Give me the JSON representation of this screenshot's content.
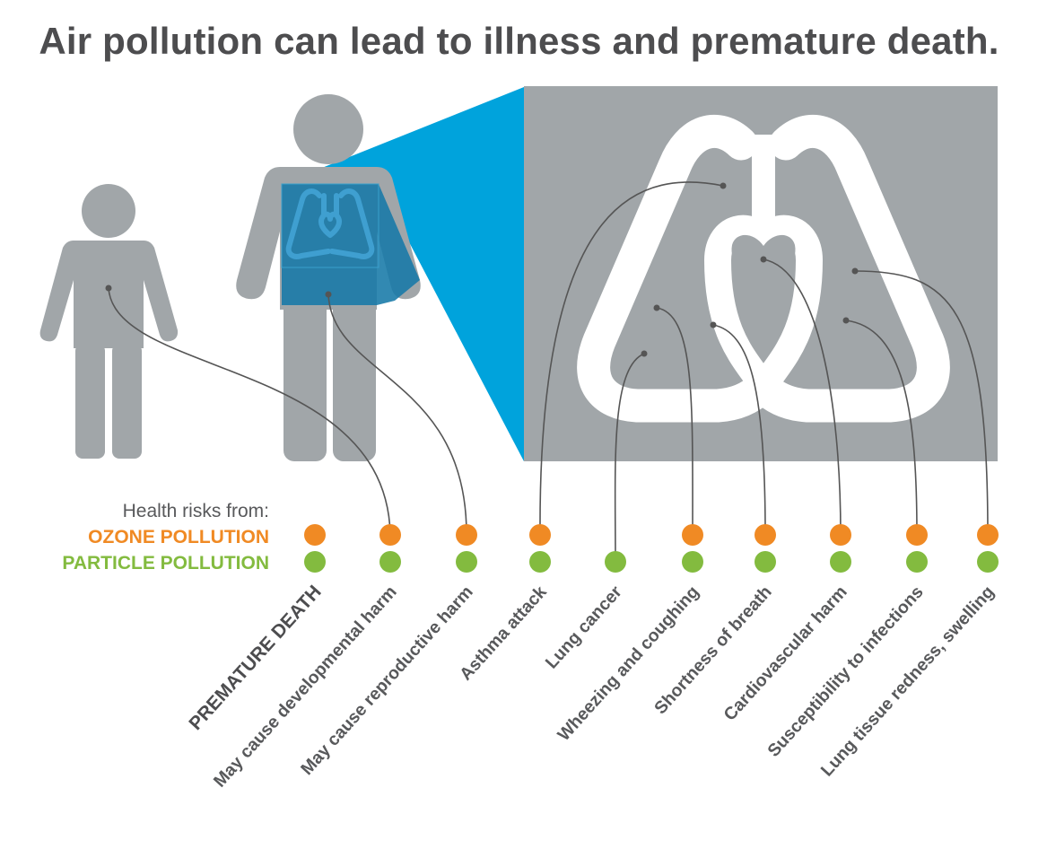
{
  "title": "Air pollution can lead to illness and premature death.",
  "legend": {
    "heading": "Health risks from:",
    "ozone_label": "OZONE POLLUTION",
    "particle_label": "PARTICLE POLLUTION"
  },
  "colors": {
    "ozone": "#f08a24",
    "particle": "#83bb3f",
    "figure_gray": "#a1a6a9",
    "zoom_blue": "#00a3dc",
    "chest_blue": "#1679a7",
    "lungs_white": "#ffffff",
    "text_gray": "#58595b",
    "connector": "#555555"
  },
  "icons": [
    "child-figure-icon",
    "adult-figure-icon",
    "lungs-icon",
    "heart-icon"
  ],
  "risks": [
    {
      "label": "PREMATURE DEATH",
      "ozone": true,
      "particle": true
    },
    {
      "label": "May cause developmental harm",
      "ozone": true,
      "particle": true
    },
    {
      "label": "May cause reproductive harm",
      "ozone": true,
      "particle": true
    },
    {
      "label": "Asthma attack",
      "ozone": true,
      "particle": true
    },
    {
      "label": "Lung cancer",
      "ozone": false,
      "particle": true
    },
    {
      "label": "Wheezing and coughing",
      "ozone": true,
      "particle": true
    },
    {
      "label": "Shortness of breath",
      "ozone": true,
      "particle": true
    },
    {
      "label": "Cardiovascular harm",
      "ozone": true,
      "particle": true
    },
    {
      "label": "Susceptibility to infections",
      "ozone": true,
      "particle": true
    },
    {
      "label": "Lung tissue redness, swelling",
      "ozone": true,
      "particle": true
    }
  ]
}
